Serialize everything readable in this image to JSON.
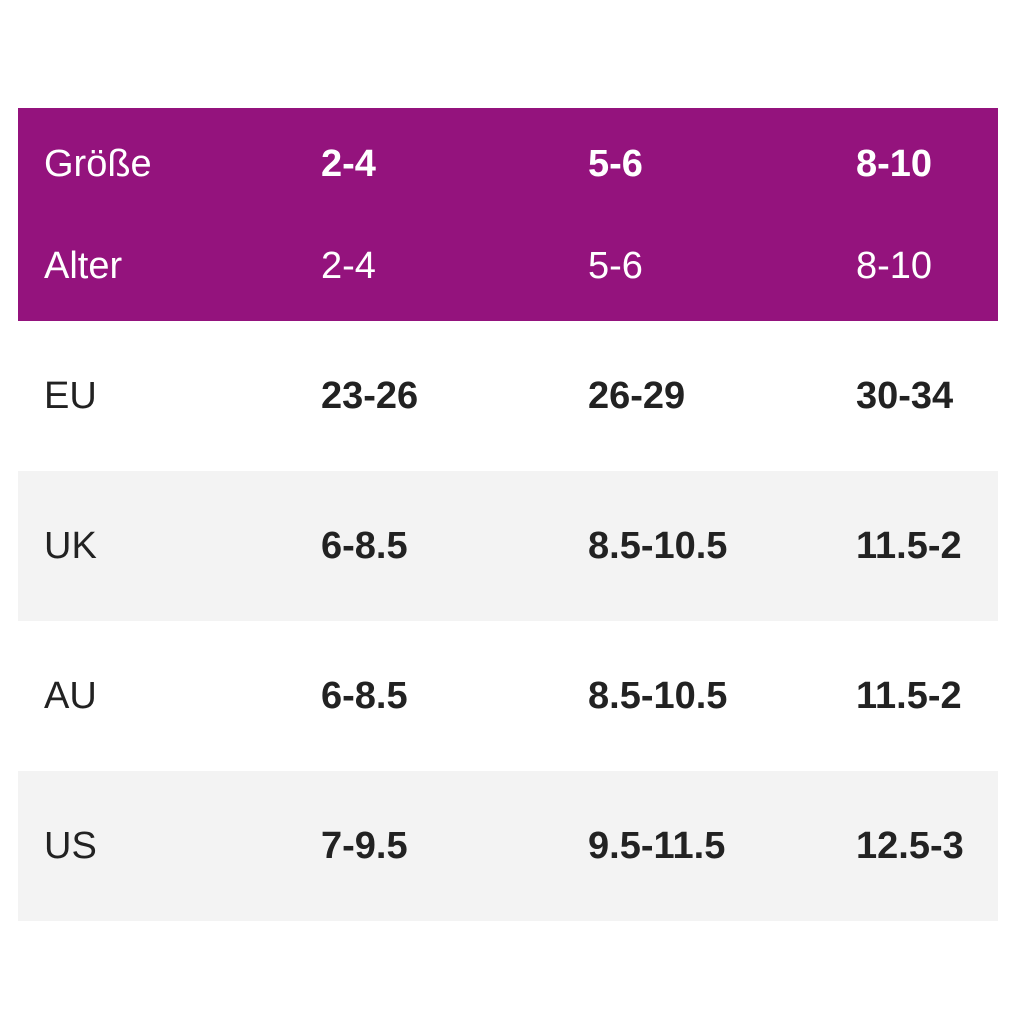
{
  "header": {
    "size_label": "Größe",
    "age_label": "Alter",
    "sizes": [
      "2-4",
      "5-6",
      "8-10"
    ],
    "ages": [
      "2-4",
      "5-6",
      "8-10"
    ]
  },
  "rows": [
    {
      "label": "EU",
      "values": [
        "23-26",
        "26-29",
        "30-34"
      ]
    },
    {
      "label": "UK",
      "values": [
        "6-8.5",
        "8.5-10.5",
        "11.5-2"
      ]
    },
    {
      "label": "AU",
      "values": [
        "6-8.5",
        "8.5-10.5",
        "11.5-2"
      ]
    },
    {
      "label": "US",
      "values": [
        "7-9.5",
        "9.5-11.5",
        "12.5-3"
      ]
    }
  ],
  "colors": {
    "header_bg": "#94137d",
    "stripe_bg": "#f3f3f3",
    "text": "#222222"
  }
}
